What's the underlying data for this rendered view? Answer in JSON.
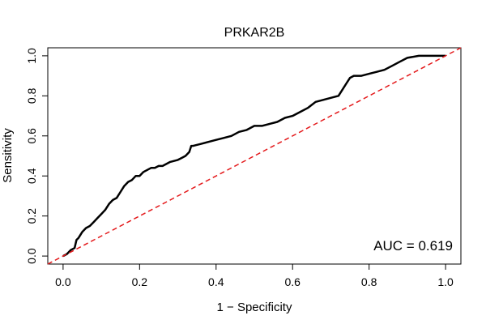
{
  "chart_data": {
    "type": "line",
    "title": "PRKAR2B",
    "xlabel": "1 − Specificity",
    "ylabel": "Sensitivity",
    "xlim": [
      -0.04,
      1.04
    ],
    "ylim": [
      -0.04,
      1.04
    ],
    "xticks": [
      0.0,
      0.2,
      0.4,
      0.6,
      0.8,
      1.0
    ],
    "xtick_labels": [
      "0.0",
      "0.2",
      "0.4",
      "0.6",
      "0.8",
      "1.0"
    ],
    "yticks": [
      0.0,
      0.2,
      0.4,
      0.6,
      0.8,
      1.0
    ],
    "ytick_labels": [
      "0.0",
      "0.2",
      "0.4",
      "0.6",
      "0.8",
      "1.0"
    ],
    "grid": false,
    "annotation": "AUC = 0.619",
    "series": [
      {
        "color": "#000000",
        "style": "solid",
        "x": [
          0.0,
          0.01,
          0.02,
          0.03,
          0.035,
          0.04,
          0.05,
          0.06,
          0.07,
          0.08,
          0.09,
          0.1,
          0.11,
          0.12,
          0.13,
          0.14,
          0.15,
          0.16,
          0.17,
          0.18,
          0.19,
          0.2,
          0.21,
          0.22,
          0.23,
          0.24,
          0.25,
          0.26,
          0.28,
          0.3,
          0.31,
          0.32,
          0.33,
          0.335,
          0.34,
          0.36,
          0.38,
          0.4,
          0.42,
          0.44,
          0.46,
          0.48,
          0.5,
          0.52,
          0.54,
          0.56,
          0.58,
          0.6,
          0.62,
          0.64,
          0.66,
          0.68,
          0.7,
          0.72,
          0.73,
          0.74,
          0.75,
          0.76,
          0.78,
          0.8,
          0.82,
          0.84,
          0.86,
          0.88,
          0.9,
          0.93,
          0.96,
          1.0
        ],
        "y": [
          0.0,
          0.01,
          0.03,
          0.04,
          0.08,
          0.09,
          0.12,
          0.14,
          0.15,
          0.17,
          0.19,
          0.21,
          0.23,
          0.26,
          0.28,
          0.29,
          0.32,
          0.35,
          0.37,
          0.38,
          0.4,
          0.4,
          0.42,
          0.43,
          0.44,
          0.44,
          0.45,
          0.45,
          0.47,
          0.48,
          0.49,
          0.5,
          0.52,
          0.55,
          0.55,
          0.56,
          0.57,
          0.58,
          0.59,
          0.6,
          0.62,
          0.63,
          0.65,
          0.65,
          0.66,
          0.67,
          0.69,
          0.7,
          0.72,
          0.74,
          0.77,
          0.78,
          0.79,
          0.8,
          0.83,
          0.86,
          0.89,
          0.9,
          0.9,
          0.91,
          0.92,
          0.93,
          0.95,
          0.97,
          0.99,
          1.0,
          1.0,
          1.0
        ]
      },
      {
        "color": "#e41a1c",
        "style": "dashed",
        "x": [
          -0.04,
          1.04
        ],
        "y": [
          -0.04,
          1.04
        ]
      }
    ]
  }
}
